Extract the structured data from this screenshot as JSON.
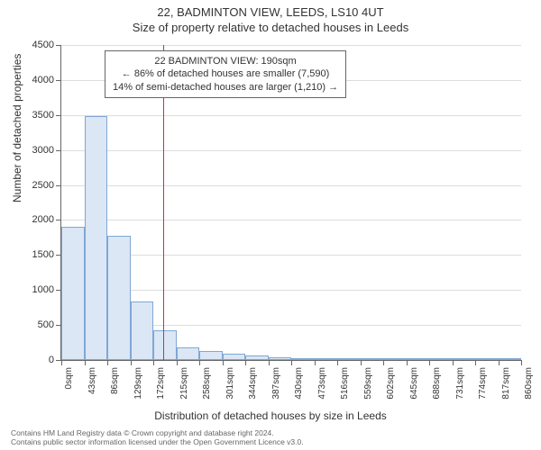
{
  "title_main": "22, BADMINTON VIEW, LEEDS, LS10 4UT",
  "title_sub": "Size of property relative to detached houses in Leeds",
  "chart": {
    "type": "histogram",
    "y_axis": {
      "title": "Number of detached properties",
      "min": 0,
      "max": 4500,
      "tick_step": 500,
      "label_fontsize": 11,
      "title_fontsize": 12
    },
    "x_axis": {
      "title": "Distribution of detached houses by size in Leeds",
      "min": 0,
      "max": 860,
      "tick_step": 43,
      "unit": "sqm",
      "label_fontsize": 10,
      "title_fontsize": 12
    },
    "bars": {
      "values": [
        1900,
        3480,
        1770,
        840,
        420,
        175,
        130,
        90,
        60,
        40,
        30,
        15,
        10,
        8,
        5,
        4,
        3,
        2,
        2,
        1
      ],
      "fill_color": "#dbe7f5",
      "border_color": "#7fa7d4",
      "border_width": 1
    },
    "reference_line": {
      "x_value": 190,
      "color": "#cc3333"
    },
    "info_box": {
      "lines": [
        "22 BADMINTON VIEW: 190sqm",
        "← 86% of detached houses are smaller (7,590)",
        "14% of semi-detached houses are larger (1,210) →"
      ],
      "border_color": "#666666",
      "background": "#ffffff",
      "fontsize": 11
    },
    "background_color": "#ffffff",
    "grid_color": "#dddddd",
    "axis_color": "#666666"
  },
  "footer": {
    "line1": "Contains HM Land Registry data © Crown copyright and database right 2024.",
    "line2": "Contains public sector information licensed under the Open Government Licence v3.0."
  }
}
